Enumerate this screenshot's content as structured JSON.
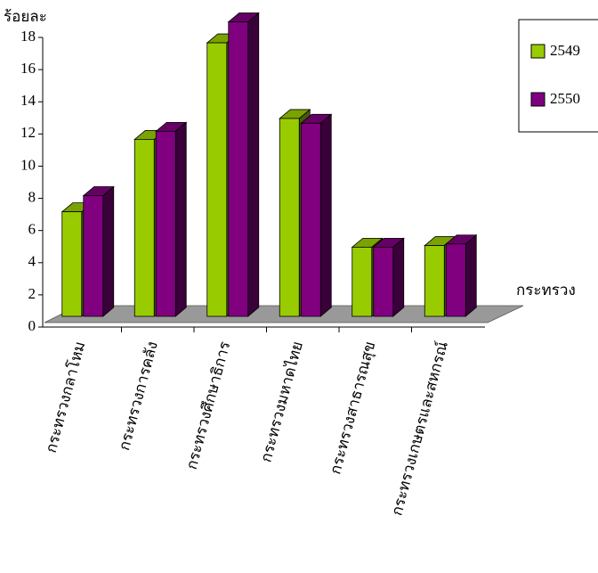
{
  "chart_data": {
    "type": "bar3d",
    "y_axis_title": "ร้อยละ",
    "x_axis_title": "กระทรวง",
    "categories": [
      "กระทรวงกลาโหม",
      "กระทรวงการคลัง",
      "กระทรวงศึกษาธิการ",
      "กระทรวงมหาดไทย",
      "กระทรวงสาธารณสุข",
      "กระทรวงเกษตรและสหกรณ์"
    ],
    "series": [
      {
        "name": "2549",
        "color": "#99cc00",
        "values": [
          6.5,
          11,
          17,
          12.3,
          4.3,
          4.4
        ]
      },
      {
        "name": "2550",
        "color": "#800080",
        "values": [
          7.5,
          11.5,
          18.3,
          12,
          4.3,
          4.5
        ]
      }
    ],
    "ylim": [
      0,
      18
    ],
    "yticks": [
      0,
      2,
      4,
      6,
      8,
      10,
      12,
      14,
      16,
      18
    ]
  }
}
